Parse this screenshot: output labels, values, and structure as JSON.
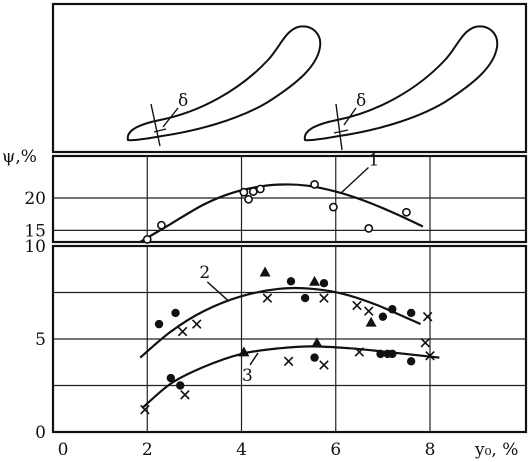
{
  "chart_data": [
    {
      "id": "psi",
      "type": "scatter",
      "ylabel": "ψ,%",
      "yticks": [
        15,
        20
      ],
      "ylim": [
        13.2,
        26.5
      ],
      "series": [
        {
          "marker": "open-circle",
          "points": [
            [
              2.0,
              13.6
            ],
            [
              2.3,
              15.8
            ],
            [
              4.05,
              20.9
            ],
            [
              4.15,
              19.8
            ],
            [
              4.25,
              21.0
            ],
            [
              4.4,
              21.4
            ],
            [
              5.55,
              22.1
            ],
            [
              5.95,
              18.6
            ],
            [
              6.7,
              15.3
            ],
            [
              7.5,
              17.8
            ]
          ]
        }
      ],
      "curves": [
        {
          "label": "1",
          "points": [
            [
              1.85,
              13.2
            ],
            [
              2.5,
              16.0
            ],
            [
              3.2,
              19.0
            ],
            [
              3.8,
              20.8
            ],
            [
              4.4,
              21.8
            ],
            [
              4.9,
              22.1
            ],
            [
              5.4,
              21.9
            ],
            [
              6.0,
              21.0
            ],
            [
              6.6,
              19.6
            ],
            [
              7.2,
              17.8
            ],
            [
              7.85,
              15.6
            ]
          ]
        }
      ]
    },
    {
      "id": "main",
      "type": "scatter",
      "xlabel": "y₀, %",
      "xlim": [
        0,
        9.4
      ],
      "ylim": [
        0,
        10
      ],
      "xticks": [
        0,
        2,
        4,
        6,
        8
      ],
      "yticks": [
        0,
        5,
        10
      ],
      "series": [
        {
          "marker": "filled-circle",
          "points": [
            [
              2.25,
              5.8
            ],
            [
              2.6,
              6.4
            ],
            [
              5.05,
              8.1
            ],
            [
              5.35,
              7.2
            ],
            [
              5.55,
              4.0
            ],
            [
              5.75,
              8.0
            ],
            [
              7.0,
              6.2
            ],
            [
              7.2,
              6.6
            ],
            [
              6.95,
              4.2
            ],
            [
              7.1,
              4.2
            ],
            [
              7.2,
              4.2
            ],
            [
              7.6,
              6.4
            ],
            [
              7.6,
              3.8
            ],
            [
              2.5,
              2.9
            ],
            [
              2.7,
              2.5
            ]
          ]
        },
        {
          "marker": "filled-triangle",
          "points": [
            [
              4.5,
              8.6
            ],
            [
              5.55,
              8.1
            ],
            [
              6.75,
              5.9
            ],
            [
              4.05,
              4.3
            ],
            [
              5.6,
              4.8
            ]
          ]
        },
        {
          "marker": "cross",
          "points": [
            [
              2.75,
              5.4
            ],
            [
              3.05,
              5.8
            ],
            [
              4.55,
              7.2
            ],
            [
              5.75,
              7.2
            ],
            [
              6.45,
              6.8
            ],
            [
              6.7,
              6.5
            ],
            [
              7.95,
              6.2
            ],
            [
              2.8,
              2.0
            ],
            [
              1.95,
              1.2
            ],
            [
              5.0,
              3.8
            ],
            [
              5.75,
              3.6
            ],
            [
              6.5,
              4.3
            ],
            [
              7.9,
              4.8
            ],
            [
              8.0,
              4.1
            ]
          ]
        }
      ],
      "curves": [
        {
          "label": "2",
          "points": [
            [
              1.85,
              4.0
            ],
            [
              2.5,
              5.4
            ],
            [
              3.2,
              6.5
            ],
            [
              4.0,
              7.3
            ],
            [
              4.8,
              7.7
            ],
            [
              5.5,
              7.7
            ],
            [
              6.2,
              7.4
            ],
            [
              6.9,
              6.8
            ],
            [
              7.8,
              5.8
            ]
          ]
        },
        {
          "label": "3",
          "points": [
            [
              1.9,
              1.3
            ],
            [
              2.5,
              2.6
            ],
            [
              3.2,
              3.5
            ],
            [
              4.0,
              4.2
            ],
            [
              4.8,
              4.5
            ],
            [
              5.5,
              4.6
            ],
            [
              6.3,
              4.5
            ],
            [
              7.1,
              4.3
            ],
            [
              8.2,
              4.0
            ]
          ]
        }
      ]
    }
  ],
  "diagram": {
    "symbol_left": "δ",
    "symbol_right": "δ"
  }
}
